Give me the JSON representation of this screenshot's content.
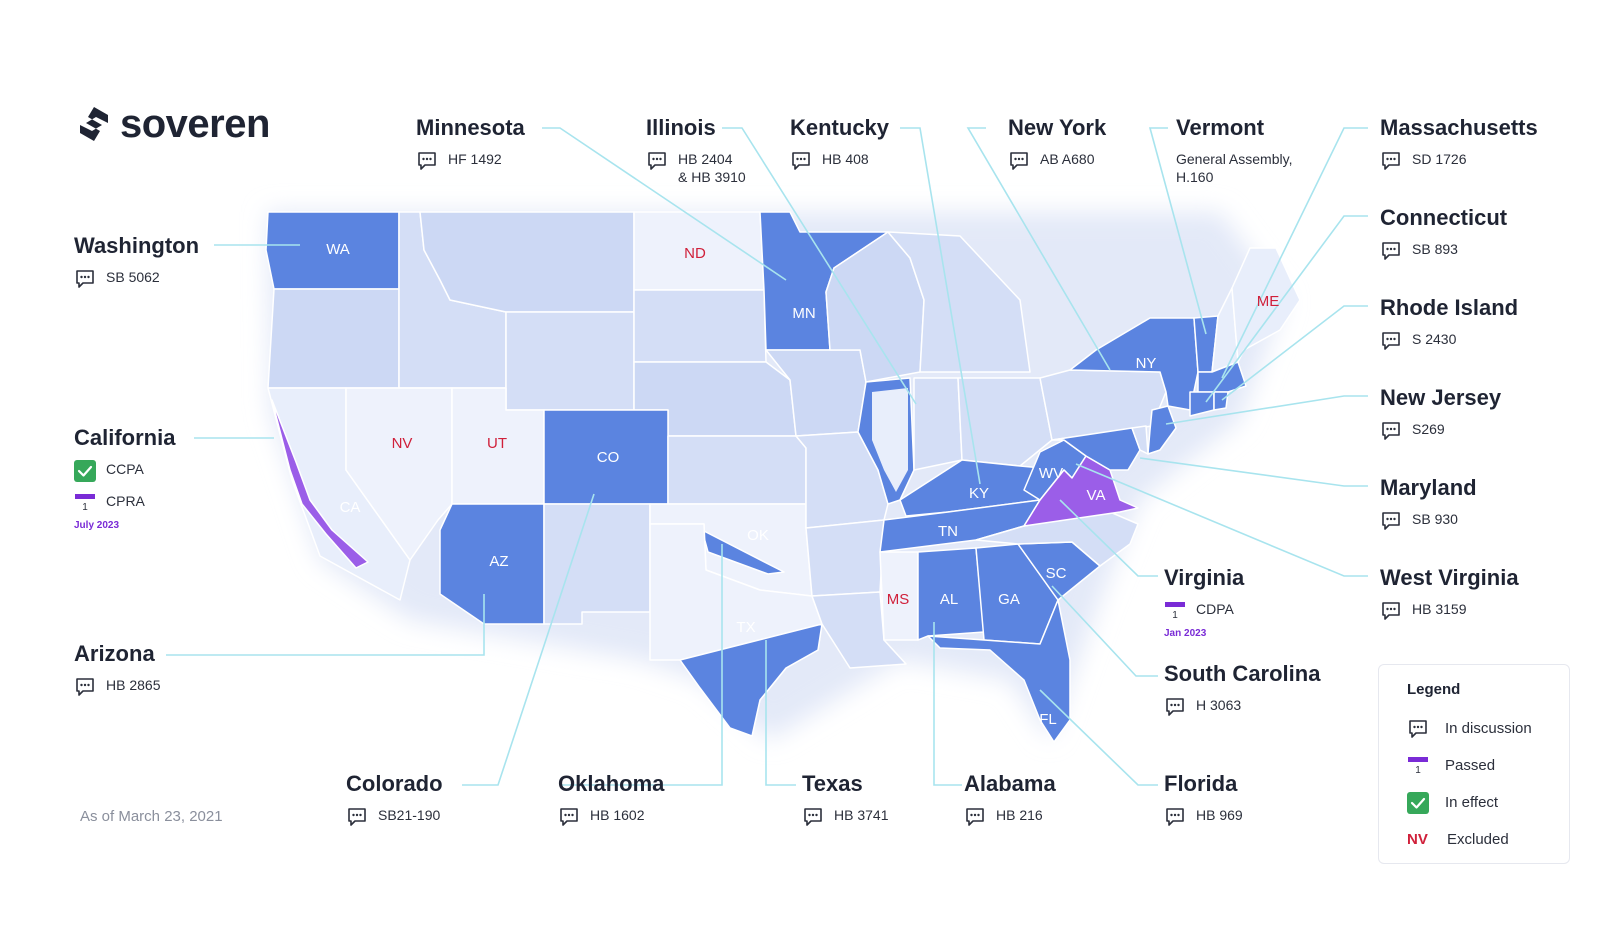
{
  "brand": {
    "name": "soveren"
  },
  "as_of": "As of March 23, 2021",
  "colors": {
    "discussion": "#5b84e0",
    "passed": "#9b5ee8",
    "excluded_text": "#d0203a",
    "line": "#a8e4ee"
  },
  "map": {
    "abbr": {
      "WA": "WA",
      "MN": "MN",
      "ND": "ND",
      "NV": "NV",
      "UT": "UT",
      "CO": "CO",
      "AZ": "AZ",
      "CA": "CA",
      "ME": "ME",
      "NY": "NY",
      "KY": "KY",
      "WV": "WV",
      "VA": "VA",
      "TN": "TN",
      "AL": "AL",
      "GA": "GA",
      "SC": "SC",
      "FL": "FL",
      "MS": "MS",
      "OK": "OK",
      "TX": "TX"
    }
  },
  "callouts": {
    "washington": {
      "state": "Washington",
      "bills": [
        "SB 5062"
      ]
    },
    "california": {
      "state": "California",
      "items": [
        {
          "status": "in-effect",
          "label": "CCPA"
        },
        {
          "status": "passed",
          "label": "CPRA"
        }
      ],
      "date": "July 2023"
    },
    "arizona": {
      "state": "Arizona",
      "bills": [
        "HB 2865"
      ]
    },
    "minnesota": {
      "state": "Minnesota",
      "bills": [
        "HF 1492"
      ]
    },
    "illinois": {
      "state": "Illinois",
      "bills": [
        "HB 2404",
        "& HB 3910"
      ]
    },
    "kentucky": {
      "state": "Kentucky",
      "bills": [
        "HB 408"
      ]
    },
    "new_york": {
      "state": "New York",
      "bills": [
        "AB A680"
      ]
    },
    "vermont": {
      "state": "Vermont",
      "bills": [
        "General Assembly,",
        "H.160"
      ]
    },
    "massachusetts": {
      "state": "Massachusetts",
      "bills": [
        "SD 1726"
      ]
    },
    "connecticut": {
      "state": "Connecticut",
      "bills": [
        "SB 893"
      ]
    },
    "rhode_island": {
      "state": "Rhode Island",
      "bills": [
        "S 2430"
      ]
    },
    "new_jersey": {
      "state": "New Jersey",
      "bills": [
        "S269"
      ]
    },
    "maryland": {
      "state": "Maryland",
      "bills": [
        "SB 930"
      ]
    },
    "west_virginia": {
      "state": "West Virginia",
      "bills": [
        "HB 3159"
      ]
    },
    "virginia": {
      "state": "Virginia",
      "items": [
        {
          "status": "passed",
          "label": "CDPA"
        }
      ],
      "date": "Jan 2023"
    },
    "south_carolina": {
      "state": "South Carolina",
      "bills": [
        "H 3063"
      ]
    },
    "colorado": {
      "state": "Colorado",
      "bills": [
        "SB21-190"
      ]
    },
    "oklahoma": {
      "state": "Oklahoma",
      "bills": [
        "HB 1602"
      ]
    },
    "texas": {
      "state": "Texas",
      "bills": [
        "HB 3741"
      ]
    },
    "alabama": {
      "state": "Alabama",
      "bills": [
        "HB 216"
      ]
    },
    "florida": {
      "state": "Florida",
      "bills": [
        "HB 969"
      ]
    }
  },
  "legend": {
    "title": "Legend",
    "items": [
      {
        "icon": "speech-bubble-icon",
        "label": "In discussion"
      },
      {
        "icon": "flag-icon",
        "label": "Passed"
      },
      {
        "icon": "checkmark-icon",
        "label": "In effect"
      },
      {
        "icon": "nv-text",
        "sample": "NV",
        "label": "Excluded"
      }
    ]
  }
}
